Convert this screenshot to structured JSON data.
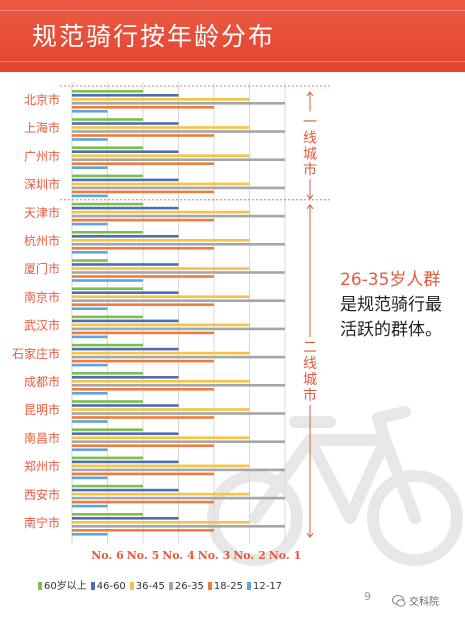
{
  "title": "规范骑行按年龄分布",
  "chart_data": {
    "type": "bar",
    "orientation": "horizontal",
    "categories": [
      "北京市",
      "上海市",
      "广州市",
      "深圳市",
      "天津市",
      "杭州市",
      "厦门市",
      "南京市",
      "武汉市",
      "石家庄市",
      "成都市",
      "昆明市",
      "南昌市",
      "郑州市",
      "西安市",
      "南宁市"
    ],
    "x_ticks": [
      "No. 6",
      "No. 5",
      "No. 4",
      "No. 3",
      "No. 2",
      "No. 1"
    ],
    "x_ticks_values": [
      6,
      5,
      4,
      3,
      2,
      1
    ],
    "value_meaning": "rank (No. 1 = longest bar)",
    "series": [
      {
        "name": "60岁以上",
        "color": "#7cc04b",
        "values": [
          5,
          5,
          5,
          5,
          5,
          5,
          6,
          5,
          5,
          5,
          5,
          5,
          5,
          5,
          5,
          5
        ]
      },
      {
        "name": "46-60",
        "color": "#4a6db3",
        "values": [
          4,
          4,
          4,
          4,
          4,
          4,
          4,
          4,
          4,
          4,
          4,
          4,
          4,
          4,
          4,
          4
        ]
      },
      {
        "name": "36-45",
        "color": "#f6c343",
        "values": [
          2,
          2,
          2,
          2,
          2,
          2,
          2,
          2,
          2,
          2,
          2,
          2,
          2,
          2,
          2,
          2
        ]
      },
      {
        "name": "26-35",
        "color": "#a6a6a6",
        "values": [
          1,
          1,
          1,
          1,
          1,
          1,
          1,
          1,
          1,
          1,
          1,
          1,
          1,
          1,
          1,
          1
        ]
      },
      {
        "name": "18-25",
        "color": "#ee7d3b",
        "values": [
          3,
          3,
          3,
          3,
          3,
          3,
          3,
          3,
          3,
          3,
          3,
          3,
          3,
          3,
          3,
          3
        ]
      },
      {
        "name": "12-17",
        "color": "#5ea5dc",
        "values": [
          6,
          6,
          6,
          6,
          6,
          6,
          5,
          6,
          6,
          6,
          6,
          6,
          6,
          6,
          6,
          6
        ]
      }
    ],
    "legend_position": "bottom",
    "grid": true
  },
  "tiers": [
    {
      "label": "一线城市",
      "from": 0,
      "to": 3
    },
    {
      "label": "二线城市",
      "from": 4,
      "to": 15
    }
  ],
  "callout": {
    "highlight": "26-35岁人群",
    "rest": "是规范骑行最活跃的群体。"
  },
  "legend_prefix": "▪",
  "page_number": "9",
  "watermark": "交科院",
  "colors": {
    "accent": "#e65a3c",
    "title_bg": "#e1452f"
  }
}
